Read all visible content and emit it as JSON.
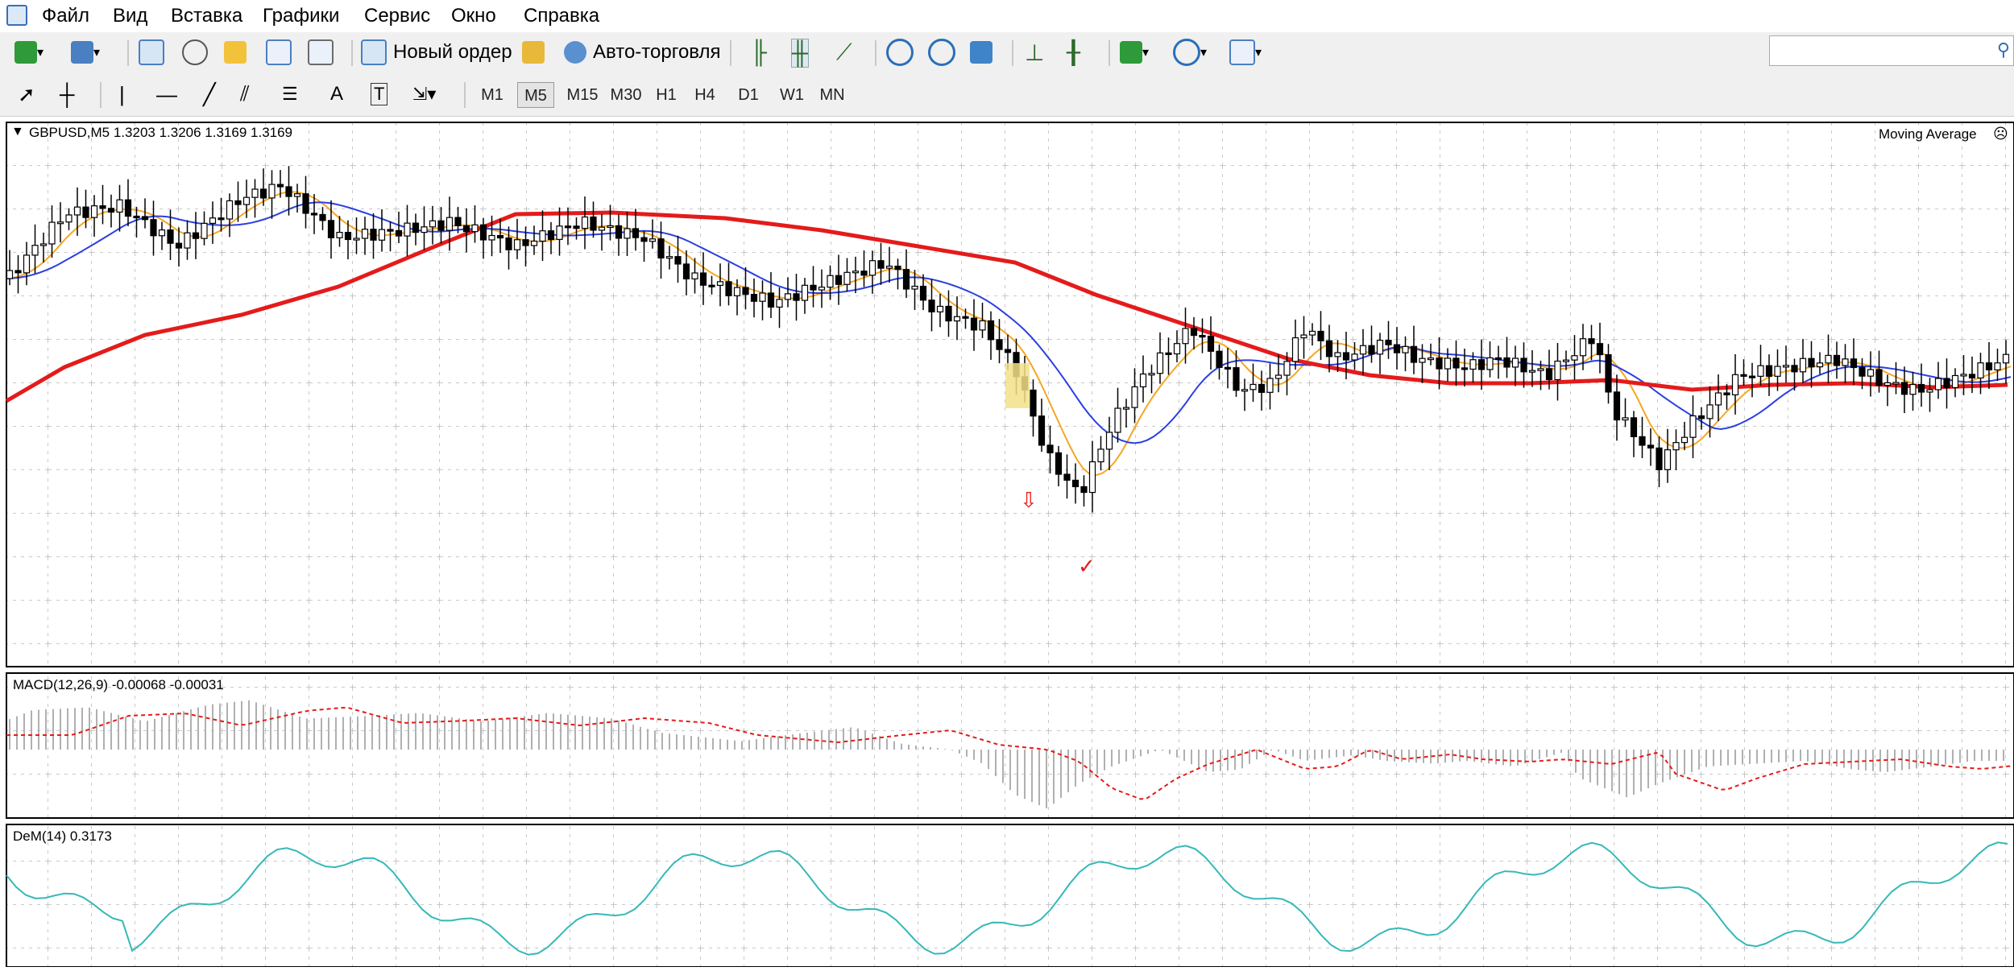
{
  "menu": [
    "Файл",
    "Вид",
    "Вставка",
    "Графики",
    "Сервис",
    "Окно",
    "Справка"
  ],
  "toolbar": {
    "new_order": "Новый ордер",
    "auto_trading": "Авто-торговля",
    "timeframes": [
      "M1",
      "M5",
      "M15",
      "M30",
      "H1",
      "H4",
      "D1",
      "W1",
      "MN"
    ],
    "active_timeframe": "M5"
  },
  "chart": {
    "header": "GBPUSD,M5  1.3203 1.3206 1.3169 1.3169",
    "indicator_label": "Moving Average"
  },
  "macd": {
    "label": "MACD(12,26,9) -0.00068 -0.00031"
  },
  "dem": {
    "label": "DeM(14) 0.3173"
  },
  "colors": {
    "ma_fast": "#f5a623",
    "ma_mid": "#2b3fe0",
    "ma_slow": "#e41b1b",
    "macd_signal": "#e41b1b",
    "dem_line": "#36b8b8",
    "grid": "#b8b8b8"
  }
}
